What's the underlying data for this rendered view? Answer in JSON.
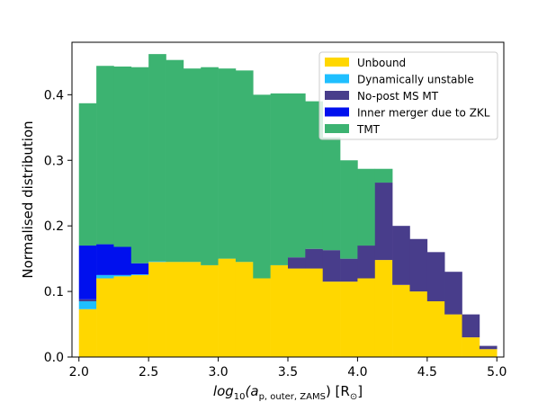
{
  "chart_data": {
    "type": "bar",
    "stacked": true,
    "x_bin_edges": [
      2.0,
      2.25,
      2.5,
      2.75,
      3.0,
      3.25,
      3.5,
      3.75,
      4.0,
      4.25,
      4.5,
      4.75,
      5.0
    ],
    "bins_per_unit": 4,
    "xlabel_parts": {
      "pre": "log",
      "sub1": "10",
      "mid": "(a",
      "sub2": "p, outer, ZAMS",
      "post": ") [R",
      "sub3": "⊙",
      "end": "]"
    },
    "ylabel": "Normalised distribution",
    "xlim": [
      1.95,
      5.05
    ],
    "ylim": [
      0.0,
      0.48
    ],
    "xticks": [
      "2.0",
      "2.5",
      "3.0",
      "3.5",
      "4.0",
      "4.5",
      "5.0"
    ],
    "yticks": [
      "0.0",
      "0.1",
      "0.2",
      "0.3",
      "0.4"
    ],
    "legend_position": "top-right",
    "grid": false,
    "bin_x": [
      2.0,
      2.125,
      2.25,
      2.375,
      2.5,
      2.625,
      2.75,
      2.875,
      3.0,
      3.125,
      3.25,
      3.375,
      3.5,
      3.625,
      3.75,
      3.875,
      4.0,
      4.125,
      4.25,
      4.375,
      4.5,
      4.625,
      4.75,
      4.875
    ],
    "series": [
      {
        "name": "Unbound",
        "color": "#ffd700",
        "values": [
          0.073,
          0.12,
          0.123,
          0.125,
          0.145,
          0.145,
          0.145,
          0.14,
          0.15,
          0.145,
          0.12,
          0.14,
          0.135,
          0.135,
          0.115,
          0.115,
          0.12,
          0.148,
          0.11,
          0.1,
          0.085,
          0.065,
          0.03,
          0.012
        ]
      },
      {
        "name": "Dynamically unstable",
        "color": "#1fbfff",
        "values": [
          0.012,
          0.005,
          0.002,
          0.001,
          0.001,
          0.0,
          0.0,
          0.0,
          0.0,
          0.0,
          0.0,
          0.0,
          0.0,
          0.0,
          0.0,
          0.0,
          0.0,
          0.0,
          0.0,
          0.0,
          0.0,
          0.0,
          0.0,
          0.0
        ]
      },
      {
        "name": "No-post MS MT",
        "color": "#483d8b",
        "values": [
          0.003,
          0.0,
          0.0,
          0.0,
          0.0,
          0.0,
          0.0,
          0.0,
          0.0,
          0.0,
          0.0,
          0.0,
          0.017,
          0.03,
          0.048,
          0.035,
          0.05,
          0.118,
          0.09,
          0.08,
          0.075,
          0.065,
          0.035,
          0.005
        ]
      },
      {
        "name": "Inner merger due to ZKL",
        "color": "#0010ee",
        "values": [
          0.082,
          0.047,
          0.043,
          0.017,
          0.0,
          0.0,
          0.0,
          0.0,
          0.0,
          0.0,
          0.0,
          0.0,
          0.0,
          0.0,
          0.0,
          0.0,
          0.0,
          0.0,
          0.0,
          0.0,
          0.0,
          0.0,
          0.0,
          0.0
        ]
      },
      {
        "name": "TMT",
        "color": "#3cb371",
        "values": [
          0.217,
          0.272,
          0.275,
          0.299,
          0.316,
          0.308,
          0.295,
          0.302,
          0.29,
          0.292,
          0.28,
          0.262,
          0.25,
          0.225,
          0.172,
          0.15,
          0.117,
          0.021,
          0.0,
          0.0,
          0.0,
          0.0,
          0.0,
          0.0
        ]
      }
    ]
  }
}
